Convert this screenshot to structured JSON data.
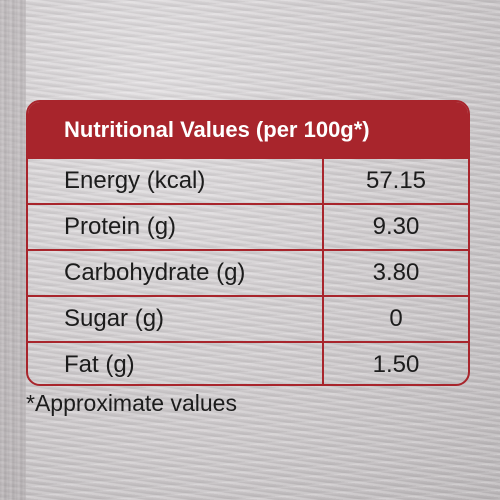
{
  "table": {
    "title": "Nutritional Values (per 100g*)",
    "rows": [
      {
        "label": "Energy (kcal)",
        "value": "57.15"
      },
      {
        "label": "Protein (g)",
        "value": "9.30"
      },
      {
        "label": "Carbohydrate (g)",
        "value": "3.80"
      },
      {
        "label": "Sugar (g)",
        "value": "0"
      },
      {
        "label": "Fat (g)",
        "value": "1.50"
      }
    ]
  },
  "footnote": "*Approximate values",
  "colors": {
    "accent": "#a8252c",
    "background": "#d4d1d3",
    "text": "#1c1c1c"
  }
}
